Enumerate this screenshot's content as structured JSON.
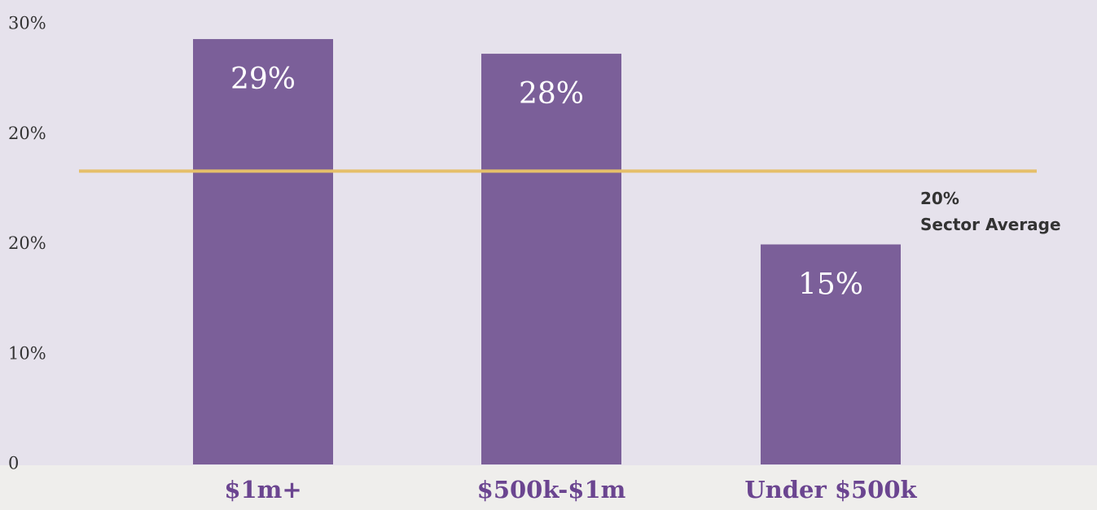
{
  "chart_data": {
    "type": "bar",
    "categories": [
      "$1m+",
      "$500k-$1m",
      "Under $500k"
    ],
    "values": [
      29,
      28,
      15
    ],
    "value_labels": [
      "29%",
      "28%",
      "15%"
    ],
    "color": "#7b5f99",
    "ylim": [
      0,
      30
    ],
    "y_axis_labels": [
      "30%",
      "20%",
      "20%",
      "10%",
      "0"
    ],
    "reference_line": {
      "value": 20,
      "color": "#e5bf6a",
      "label": "20%",
      "text": "Sector Average"
    }
  }
}
